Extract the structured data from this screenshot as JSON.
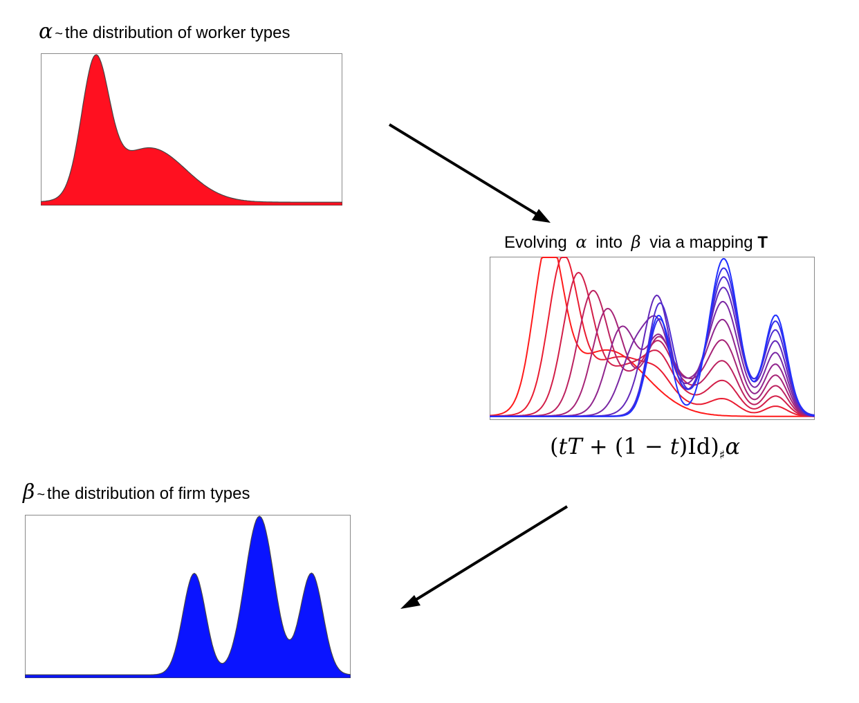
{
  "alpha_panel": {
    "symbol": "α",
    "tilde": "~",
    "label": "the distribution of worker types",
    "fill_color": "#ff1020"
  },
  "evolve_panel": {
    "prefix": "Evolving",
    "alpha": "α",
    "middle": "into",
    "beta": "β",
    "suffix": "via a mapping",
    "mapping": "T",
    "start_color": "#ff1a1a",
    "end_color": "#2030ff"
  },
  "formula": {
    "open": "(",
    "t1": "t",
    "T": "T",
    "plus_part": " + (1 − ",
    "t2": "t",
    "close": ")Id)",
    "sharp": "♯",
    "alpha": "α"
  },
  "beta_panel": {
    "symbol": "β",
    "tilde": "~",
    "label": "the distribution of firm types",
    "fill_color": "#0a14ff"
  }
}
